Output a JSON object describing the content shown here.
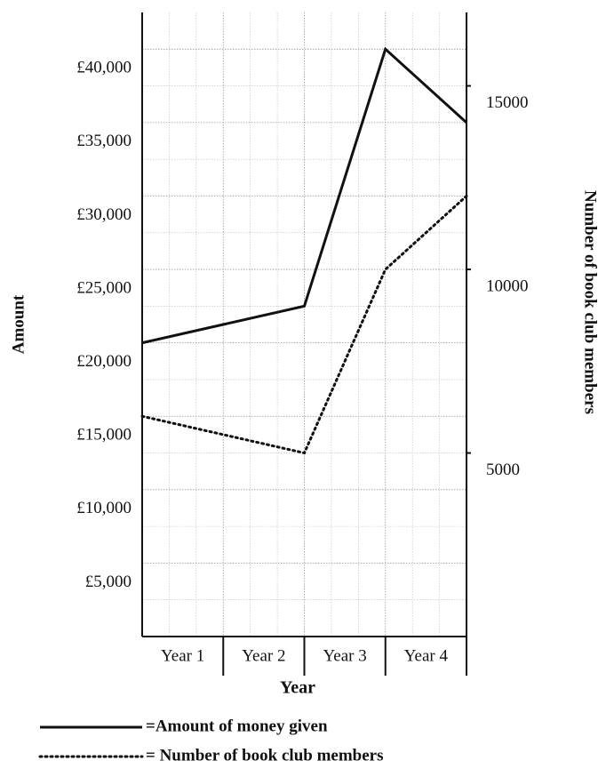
{
  "chart_data": {
    "type": "line",
    "xlabel": "Year",
    "ylabel": "Amount",
    "y2label": "Number of book club members",
    "categories": [
      null,
      "Year 1",
      "Year 2",
      "Year 3",
      "Year 4"
    ],
    "series": [
      {
        "name": "=Amount of money given",
        "color": "#111111",
        "style": "solid",
        "values": [
          20000,
          21250,
          22500,
          40000,
          35000
        ]
      },
      {
        "name": "= Number of book club members",
        "color": "#111111",
        "style": "dotted",
        "axis": "y2",
        "values": [
          6000,
          5500,
          5000,
          10000,
          12000
        ]
      }
    ],
    "ylim": [
      0,
      42500
    ],
    "yticks": [
      {
        "value": 5000,
        "label": "£5,000"
      },
      {
        "value": 10000,
        "label": "£10,000"
      },
      {
        "value": 15000,
        "label": "£15,000"
      },
      {
        "value": 20000,
        "label": "£20,000"
      },
      {
        "value": 25000,
        "label": "£25,000"
      },
      {
        "value": 30000,
        "label": "£30,000"
      },
      {
        "value": 35000,
        "label": "£35,000"
      },
      {
        "value": 40000,
        "label": "£40,000"
      }
    ],
    "y2lim": [
      0,
      17000
    ],
    "y2ticks": [
      5000,
      10000,
      15000
    ],
    "grid": true
  }
}
